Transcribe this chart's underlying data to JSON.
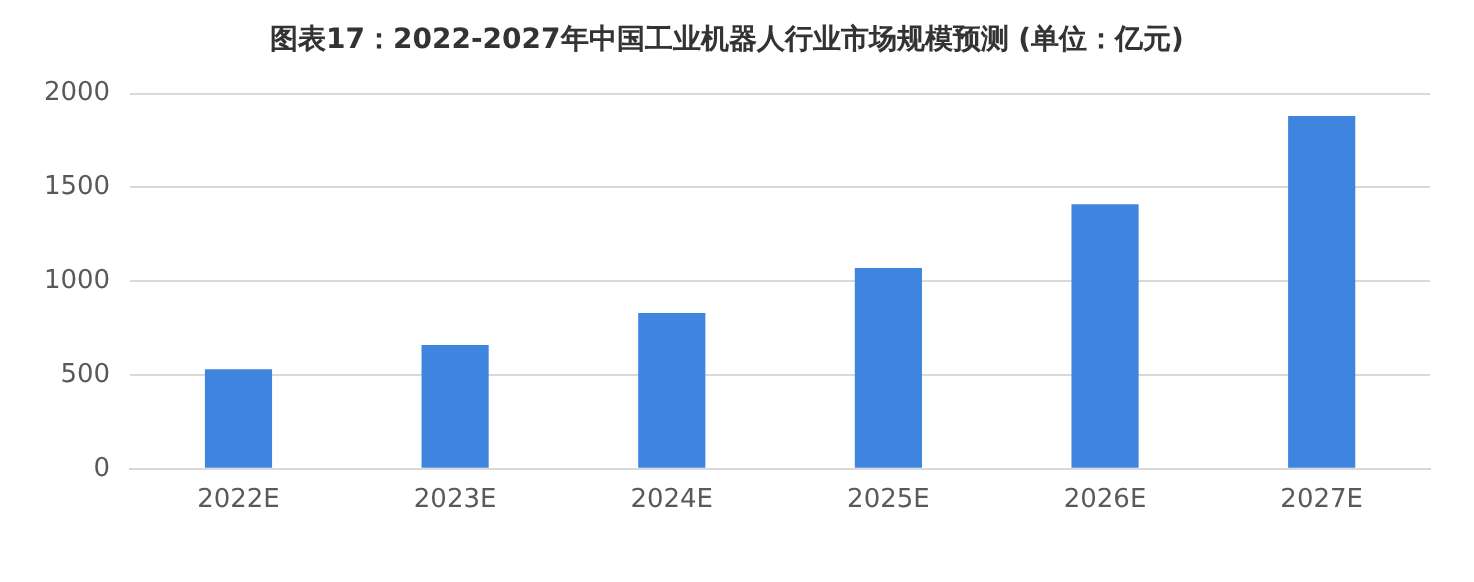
{
  "chart_data": {
    "type": "bar",
    "title": "图表17：2022-2027年中国工业机器人行业市场规模预测 (单位：亿元)",
    "categories": [
      "2022E",
      "2023E",
      "2024E",
      "2025E",
      "2026E",
      "2027E"
    ],
    "values": [
      530,
      660,
      830,
      1070,
      1410,
      1880
    ],
    "color": "#3f85e0",
    "ylim": [
      0,
      2000
    ],
    "yticks": [
      0,
      500,
      1000,
      1500,
      2000
    ],
    "grid": "y",
    "legend": false
  }
}
